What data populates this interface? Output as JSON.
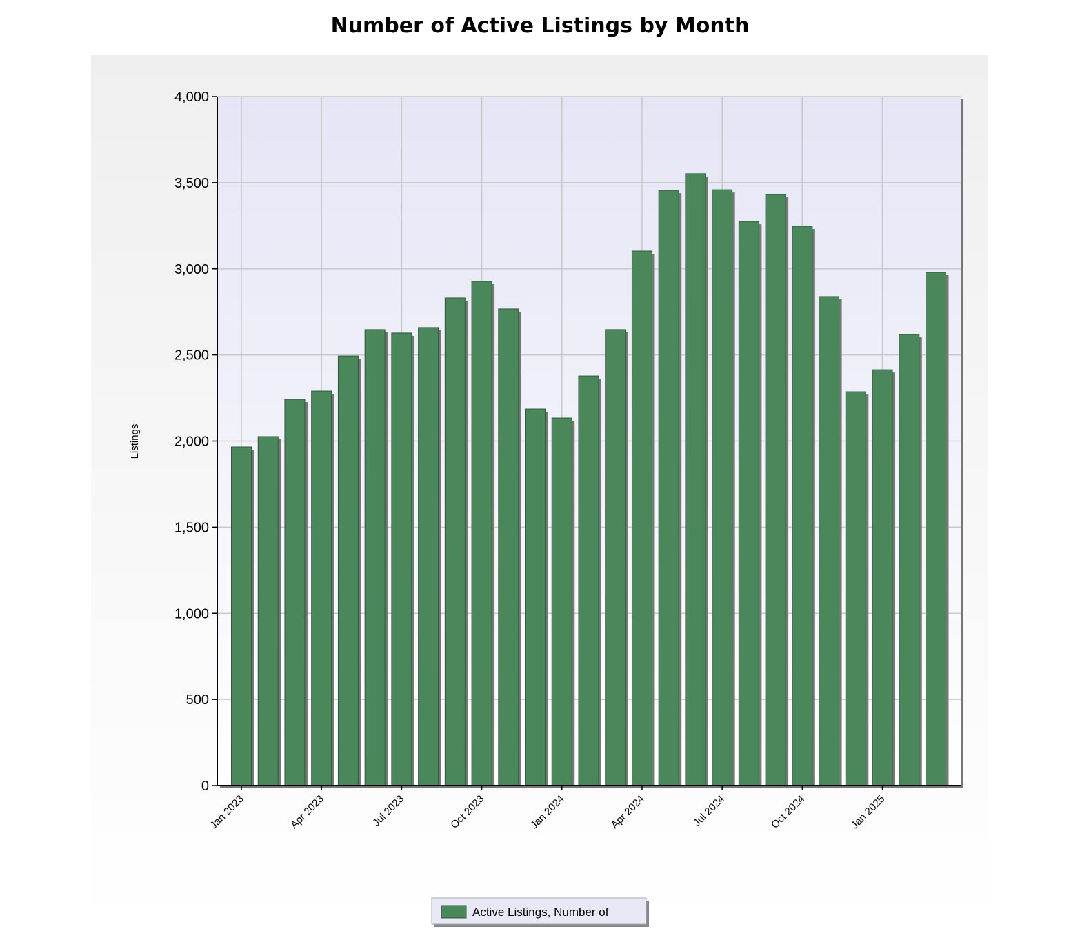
{
  "chart_data": {
    "type": "bar",
    "title": "Number of Active Listings by Month",
    "xlabel": "",
    "ylabel": "Listings",
    "ylim": [
      0,
      4000
    ],
    "yticks": [
      0,
      500,
      1000,
      1500,
      2000,
      2500,
      3000,
      3500,
      4000
    ],
    "ytick_labels": [
      "0",
      "500",
      "1,000",
      "1,500",
      "2,000",
      "2,500",
      "3,000",
      "3,500",
      "4,000"
    ],
    "grid": true,
    "legend_position": "bottom-center",
    "categories": [
      "Jan 2023",
      "Feb 2023",
      "Mar 2023",
      "Apr 2023",
      "May 2023",
      "Jun 2023",
      "Jul 2023",
      "Aug 2023",
      "Sep 2023",
      "Oct 2023",
      "Nov 2023",
      "Dec 2023",
      "Jan 2024",
      "Feb 2024",
      "Mar 2024",
      "Apr 2024",
      "May 2024",
      "Jun 2024",
      "Jul 2024",
      "Aug 2024",
      "Sep 2024",
      "Oct 2024",
      "Nov 2024",
      "Dec 2024",
      "Jan 2025",
      "Feb 2025",
      "Mar 2025"
    ],
    "xtick_labels": [
      "Jan 2023",
      "Apr 2023",
      "Jul 2023",
      "Oct 2023",
      "Jan 2024",
      "Apr 2024",
      "Jul 2024",
      "Oct 2024",
      "Jan 2025"
    ],
    "series": [
      {
        "name": "Active Listings, Number of",
        "color": "#4a875a",
        "values": [
          1966,
          2026,
          2242,
          2290,
          2494,
          2647,
          2627,
          2659,
          2831,
          2927,
          2767,
          2186,
          2134,
          2378,
          2647,
          3103,
          3455,
          3552,
          3459,
          3275,
          3431,
          3247,
          2839,
          2286,
          2414,
          2619,
          2979
        ]
      }
    ]
  }
}
